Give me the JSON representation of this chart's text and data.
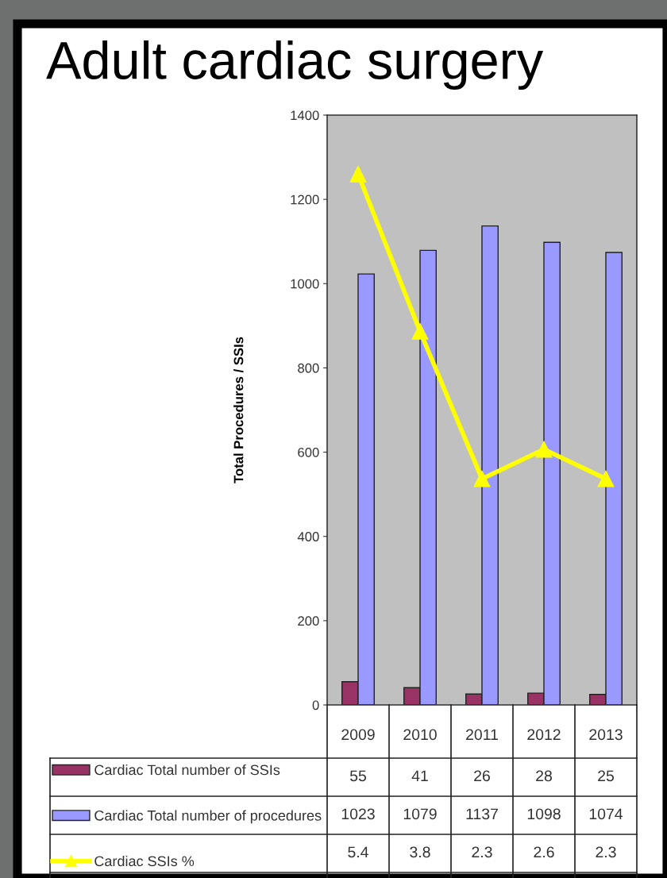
{
  "chart_data": {
    "type": "bar",
    "title": "Adult cardiac surgery",
    "ylabel": "Total Procedures / SSIs",
    "categories": [
      "2009",
      "2010",
      "2011",
      "2012",
      "2013"
    ],
    "series": [
      {
        "name": "Cardiac Total number of SSIs",
        "color": "#993366",
        "values": [
          55,
          41,
          26,
          28,
          25
        ]
      },
      {
        "name": "Cardiac Total number of procedures",
        "color": "#9999ff",
        "values": [
          1023,
          1079,
          1137,
          1098,
          1074
        ]
      },
      {
        "name": "Cardiac SSIs %",
        "color": "#ffff00",
        "type": "line",
        "axis": "y2",
        "marker": "triangle",
        "values": [
          5.4,
          3.8,
          2.3,
          2.6,
          2.3
        ]
      }
    ],
    "ylim": [
      0,
      1400
    ],
    "yticks": [
      0,
      200,
      400,
      600,
      800,
      1000,
      1200,
      1400
    ],
    "y2lim": [
      0,
      6
    ],
    "data_labels": true,
    "legend": "bottom left"
  }
}
